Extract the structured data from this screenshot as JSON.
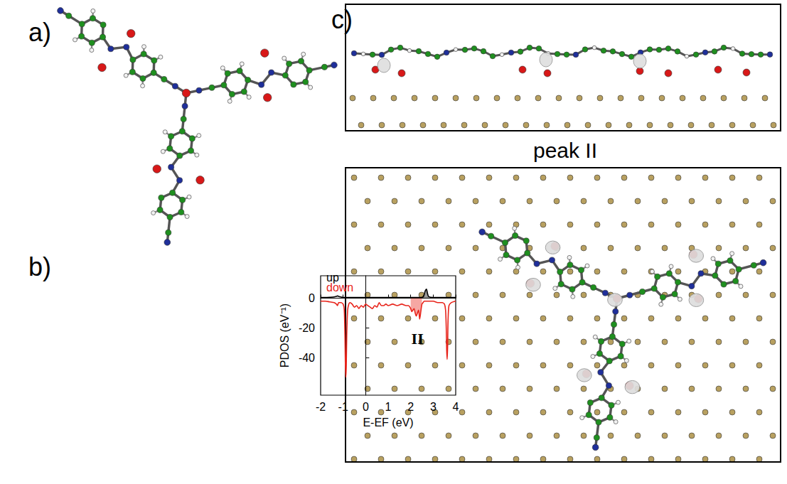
{
  "panel_labels": [
    "a)",
    "b)",
    "c)"
  ],
  "panel_c_title": "peak II",
  "chart_data": {
    "type": "line",
    "x_label": "E-EF (eV)",
    "y_label": "PDOS (eV⁻¹)",
    "x": [
      -2,
      -1.8,
      -1.6,
      -1.4,
      -1.3,
      -1.25,
      -1.2,
      -1.1,
      -1.0,
      -0.95,
      -0.92,
      -0.9,
      -0.88,
      -0.86,
      -0.84,
      -0.8,
      -0.75,
      -0.7,
      -0.6,
      -0.5,
      -0.4,
      -0.3,
      -0.2,
      -0.1,
      0,
      0.1,
      0.2,
      0.3,
      0.4,
      0.5,
      0.6,
      0.7,
      0.8,
      0.9,
      1.0,
      1.2,
      1.4,
      1.6,
      1.8,
      1.9,
      2.0,
      2.05,
      2.1,
      2.15,
      2.2,
      2.25,
      2.3,
      2.35,
      2.4,
      2.45,
      2.5,
      2.55,
      2.6,
      2.65,
      2.7,
      2.75,
      2.8,
      3.0,
      3.2,
      3.4,
      3.5,
      3.55,
      3.58,
      3.6,
      3.62,
      3.64,
      3.66,
      3.7,
      3.8,
      4.0
    ],
    "series": [
      {
        "name": "up",
        "color": "#000000",
        "shaded": [
          2.55,
          2.8
        ],
        "values": [
          0.5,
          0.5,
          0.6,
          0.8,
          1.2,
          1.5,
          1.2,
          0.8,
          0.5,
          0.5,
          0.5,
          0.5,
          0.5,
          0.5,
          0.5,
          0.5,
          0.5,
          0.5,
          0.5,
          0.5,
          0.5,
          0.5,
          0.5,
          0.5,
          0.5,
          0.5,
          0.5,
          0.5,
          0.5,
          0.5,
          0.5,
          0.5,
          0.5,
          0.5,
          0.5,
          0.5,
          0.5,
          0.5,
          0.5,
          0.5,
          0.5,
          0.5,
          0.5,
          0.5,
          0.5,
          0.5,
          0.5,
          0.5,
          0.5,
          0.5,
          0.6,
          1,
          2.5,
          5,
          6,
          3,
          1,
          0.5,
          0.5,
          0.5,
          0.5,
          0.5,
          0.5,
          0.5,
          0.5,
          0.5,
          0.5,
          0.5,
          0.5,
          0.5
        ]
      },
      {
        "name": "down",
        "color": "#e8231a",
        "shaded": [
          1.95,
          2.5
        ],
        "values": [
          -2,
          -2,
          -2.5,
          -3,
          -4,
          -5,
          -3,
          -3,
          -4,
          -8,
          -25,
          -45,
          -53,
          -45,
          -25,
          -8,
          -4,
          -3,
          -4,
          -6,
          -5,
          -7,
          -5,
          -6,
          -4,
          -5,
          -6,
          -7,
          -5,
          -6,
          -3,
          -5,
          -5,
          -4,
          -5,
          -4,
          -5,
          -4,
          -5,
          -5,
          -7,
          -9,
          -8,
          -7,
          -10,
          -12,
          -10,
          -8,
          -14,
          -9,
          -4,
          -3,
          -2,
          -2,
          -2,
          -2,
          -2,
          -2,
          -3,
          -3,
          -4,
          -8,
          -20,
          -35,
          -41,
          -33,
          -15,
          -5,
          -3,
          -2
        ]
      }
    ],
    "xlim": [
      -2,
      4
    ],
    "xticks": [
      -2,
      -1,
      0,
      1,
      2,
      3,
      4
    ],
    "ylim": [
      -65,
      15
    ],
    "yticks": [
      -40,
      -20,
      0
    ],
    "legend": "upper left",
    "grid": false,
    "annotations": [
      {
        "text": "II",
        "x": 2.3,
        "y": -27
      }
    ]
  }
}
